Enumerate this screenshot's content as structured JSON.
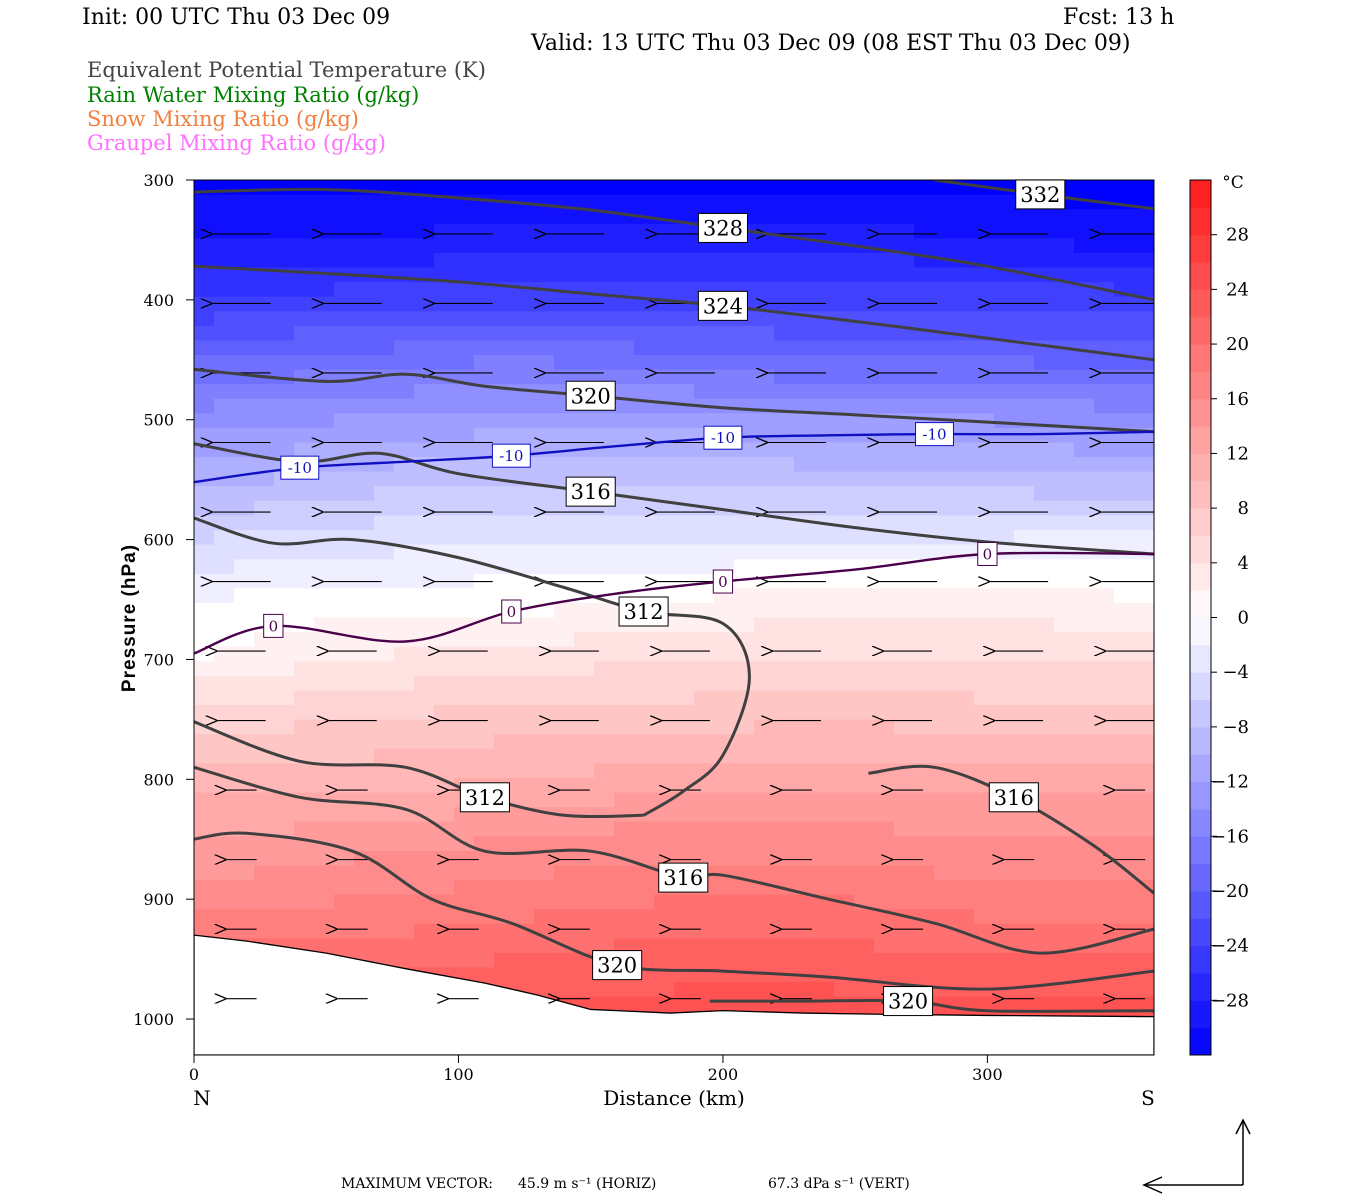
{
  "header": {
    "init": "Init: 00 UTC Thu 03 Dec 09",
    "fcst": "Fcst:   13 h",
    "valid": "Valid: 13 UTC Thu 03 Dec 09 (08 EST Thu 03 Dec 09)"
  },
  "variables": [
    {
      "label": "Equivalent Potential Temperature (K)",
      "color": "#444444"
    },
    {
      "label": "Rain Water Mixing Ratio (g/kg)",
      "color": "#008000"
    },
    {
      "label": "Snow Mixing Ratio (g/kg)",
      "color": "#f08040"
    },
    {
      "label": "Graupel Mixing Ratio (g/kg)",
      "color": "#ff70ff"
    }
  ],
  "chart_data": {
    "type": "heatmap",
    "xlabel": "Distance (km)",
    "ylabel": "Pressure (hPa)",
    "xlim": [
      0,
      363
    ],
    "ylim": [
      1030,
      300
    ],
    "x_ticks": [
      0,
      100,
      200,
      300
    ],
    "y_ticks": [
      300,
      400,
      500,
      600,
      700,
      800,
      900,
      1000
    ],
    "endpoints": {
      "left": "N",
      "right": "S"
    },
    "colorbar": {
      "unit": "°C",
      "ticks": [
        28,
        24,
        20,
        16,
        12,
        8,
        4,
        0,
        -4,
        -8,
        -12,
        -16,
        -20,
        -24,
        -28
      ],
      "range": [
        -32,
        32
      ],
      "cold_color": "#0000ff",
      "warm_color": "#ff1a1a"
    },
    "temperature_field": {
      "x": [
        0,
        60,
        120,
        180,
        240,
        300,
        363
      ],
      "p": [
        300,
        350,
        400,
        450,
        500,
        550,
        600,
        650,
        700,
        750,
        800,
        850,
        900,
        950,
        1000
      ],
      "t": [
        [
          -32,
          -32,
          -32,
          -32,
          -32,
          -32,
          -32
        ],
        [
          -29,
          -29,
          -28,
          -28,
          -28,
          -29,
          -30
        ],
        [
          -25,
          -24,
          -24,
          -24,
          -24,
          -24,
          -24
        ],
        [
          -19,
          -18,
          -17,
          -18,
          -19,
          -19,
          -20
        ],
        [
          -14,
          -13,
          -12,
          -12,
          -13,
          -13,
          -14
        ],
        [
          -10,
          -8,
          -7,
          -7,
          -8,
          -8,
          -9
        ],
        [
          -5,
          -4,
          -3,
          -3,
          -3,
          -3,
          -2
        ],
        [
          -1,
          0,
          0,
          1,
          2,
          2,
          1
        ],
        [
          1,
          3,
          4,
          5,
          5,
          5,
          5
        ],
        [
          6,
          7,
          8,
          8,
          9,
          8,
          8
        ],
        [
          10,
          10,
          11,
          12,
          12,
          12,
          12
        ],
        [
          13,
          14,
          15,
          16,
          16,
          15,
          15
        ],
        [
          16,
          17,
          18,
          19,
          19,
          18,
          18
        ],
        [
          20,
          20,
          21,
          22,
          22,
          21,
          21
        ],
        [
          24,
          24,
          24,
          24,
          24,
          24,
          24
        ]
      ]
    },
    "surface_pressure": {
      "x": [
        0,
        20,
        50,
        80,
        110,
        130,
        150,
        180,
        200,
        230,
        260,
        300,
        363
      ],
      "p": [
        930,
        935,
        945,
        958,
        970,
        980,
        992,
        995,
        993,
        995,
        996,
        997,
        998
      ]
    },
    "theta_e_contours": [
      {
        "label": "332",
        "x": [
          280,
          320,
          363
        ],
        "p": [
          300,
          312,
          324
        ]
      },
      {
        "label": "328",
        "x": [
          0,
          50,
          100,
          150,
          200,
          250,
          300,
          363
        ],
        "p": [
          310,
          308,
          315,
          325,
          340,
          355,
          372,
          400
        ]
      },
      {
        "label": "324",
        "x": [
          0,
          50,
          100,
          150,
          200,
          250,
          300,
          363
        ],
        "p": [
          372,
          378,
          385,
          395,
          405,
          418,
          432,
          450
        ]
      },
      {
        "label": "320",
        "x": [
          0,
          50,
          80,
          110,
          150,
          200,
          250,
          300,
          363
        ],
        "p": [
          458,
          468,
          462,
          472,
          480,
          490,
          496,
          502,
          510
        ]
      },
      {
        "label": "316",
        "x": [
          0,
          40,
          70,
          100,
          150,
          200,
          250,
          300,
          363
        ],
        "p": [
          520,
          535,
          528,
          545,
          560,
          575,
          590,
          602,
          612
        ]
      },
      {
        "label": "312",
        "x": [
          0,
          30,
          60,
          100,
          140,
          170,
          200,
          210,
          200,
          185,
          170
        ],
        "p": [
          582,
          603,
          600,
          615,
          640,
          660,
          670,
          715,
          780,
          810,
          830
        ]
      },
      {
        "label": "312",
        "x": [
          0,
          40,
          80,
          110,
          140,
          170
        ],
        "p": [
          752,
          785,
          790,
          815,
          830,
          830
        ]
      },
      {
        "label": "316",
        "x": [
          0,
          40,
          80,
          110,
          150,
          185,
          200,
          240,
          280,
          320,
          363
        ],
        "p": [
          790,
          815,
          825,
          860,
          860,
          882,
          880,
          900,
          920,
          945,
          925
        ]
      },
      {
        "label": "316",
        "x": [
          255,
          280,
          310,
          340,
          363
        ],
        "p": [
          795,
          790,
          815,
          855,
          895
        ]
      },
      {
        "label": "320",
        "x": [
          0,
          20,
          60,
          90,
          120,
          160,
          200,
          240,
          300,
          363
        ],
        "p": [
          850,
          845,
          860,
          900,
          920,
          955,
          960,
          965,
          975,
          960
        ]
      },
      {
        "label": "320",
        "x": [
          195,
          230,
          270,
          300,
          363
        ],
        "p": [
          985,
          985,
          985,
          993,
          993
        ]
      }
    ],
    "temperature_contours": [
      {
        "label": "-10",
        "x": [
          0,
          40,
          80,
          120,
          160,
          200,
          240,
          280,
          320,
          363
        ],
        "p": [
          552,
          540,
          535,
          530,
          522,
          515,
          513,
          512,
          512,
          510
        ],
        "color": "#1010c0"
      },
      {
        "label": "0",
        "x": [
          0,
          30,
          80,
          120,
          160,
          200,
          250,
          300,
          363
        ],
        "p": [
          695,
          672,
          685,
          660,
          645,
          635,
          625,
          612,
          612
        ],
        "color": "#4a004a"
      }
    ],
    "wind_vectors_note": "horizontal-vertical circulation vectors, predominantly from S to N",
    "max_vector": {
      "prefix": "MAXIMUM VECTOR:",
      "horiz": "45.9 m s⁻¹ (HORIZ)",
      "vert": "67.3 dPa s⁻¹ (VERT)"
    }
  }
}
